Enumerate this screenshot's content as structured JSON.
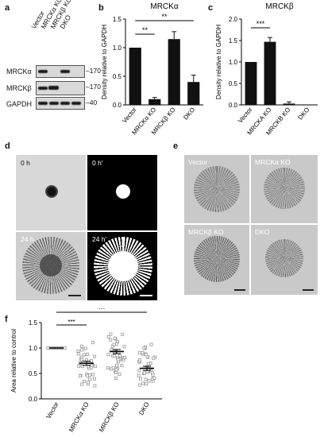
{
  "panel_letters": {
    "a": "a",
    "b": "b",
    "c": "c",
    "d": "d",
    "e": "e",
    "f": "f"
  },
  "western_blot": {
    "lanes": [
      "Vector",
      "MRCKα KO",
      "MRCKβ KO",
      "DKO"
    ],
    "rows": [
      "MRCKα",
      "MRCKβ",
      "GAPDH"
    ],
    "markers": [
      "170",
      "170",
      "40"
    ]
  },
  "panel_d": {
    "labels": [
      "0 h",
      "0 h'",
      "24 h",
      "24 h'"
    ]
  },
  "panel_e": {
    "labels": [
      "Vector",
      "MRCKα KO",
      "MRCKβ KO",
      "DKO"
    ]
  },
  "chart_data": [
    {
      "id": "b",
      "type": "bar",
      "title": "MRCKα",
      "ylabel": "Density relative to GAPDH",
      "categories": [
        "Vector",
        "MRCKα KO",
        "MRCKβ KO",
        "DKO"
      ],
      "values": [
        1.0,
        0.1,
        1.15,
        0.4
      ],
      "errors": [
        0.0,
        0.03,
        0.13,
        0.12
      ],
      "ylim": [
        0,
        1.5
      ],
      "yticks": [
        "0.0",
        "0.5",
        "1.0",
        "1.5"
      ],
      "significance": [
        {
          "from": 0,
          "to": 1,
          "label": "**"
        },
        {
          "from": 0,
          "to": 3,
          "label": "**"
        }
      ]
    },
    {
      "id": "c",
      "type": "bar",
      "title": "MRCKβ",
      "ylabel": "Density relative to GAPDH",
      "categories": [
        "Vector",
        "MRCKA KO",
        "MRCKB KO",
        "DKO"
      ],
      "values": [
        1.0,
        1.47,
        0.03,
        0.01
      ],
      "errors": [
        0.0,
        0.1,
        0.04,
        0.0
      ],
      "ylim": [
        0,
        2.0
      ],
      "yticks": [
        "0.0",
        "0.5",
        "1.0",
        "1.5",
        "2.0"
      ],
      "significance": [
        {
          "from": 0,
          "to": 1,
          "label": "***"
        }
      ]
    },
    {
      "id": "f",
      "type": "scatter",
      "ylabel": "Area relative to control",
      "categories": [
        "Vector",
        "MRCKα KO",
        "MRCKβ KO",
        "DKO"
      ],
      "means": [
        1.0,
        0.7,
        0.93,
        0.6
      ],
      "sems": [
        0.0,
        0.04,
        0.04,
        0.04
      ],
      "spread": [
        [
          1.0,
          1.0
        ],
        [
          0.2,
          1.15
        ],
        [
          0.35,
          1.35
        ],
        [
          0.2,
          1.1
        ]
      ],
      "ylim": [
        0,
        1.5
      ],
      "yticks": [
        "0.0",
        "0.5",
        "1.0",
        "1.5"
      ],
      "significance": [
        {
          "from": 0,
          "to": 1,
          "label": "***"
        },
        {
          "from": 0,
          "to": 3,
          "label": "***"
        }
      ]
    }
  ]
}
